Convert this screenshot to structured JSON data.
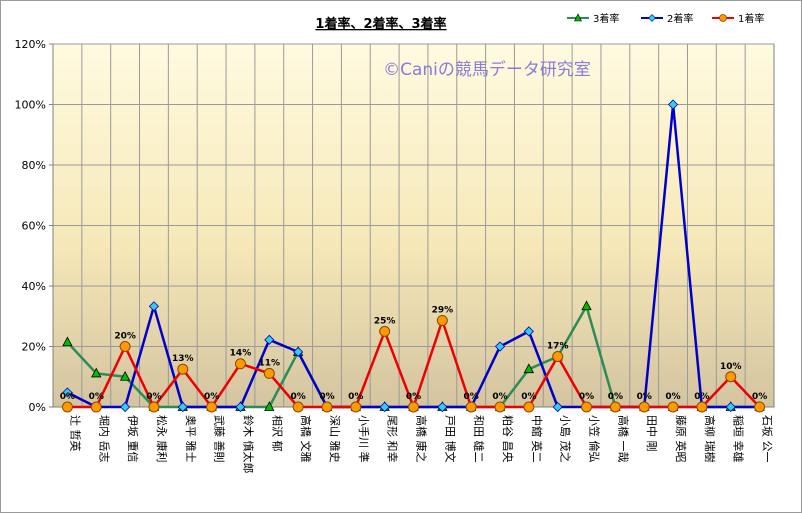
{
  "chart_data": {
    "type": "line",
    "title": "1着率、2着率、3着率",
    "watermark": "©Caniの競馬データ研究室",
    "ylim": [
      0,
      1.2
    ],
    "yticks": [
      "0%",
      "20%",
      "40%",
      "60%",
      "80%",
      "100%",
      "120%"
    ],
    "grid": true,
    "legend_position": "top-right",
    "categories": [
      "辻 哲英",
      "堀内 岳志",
      "伊坂 重信",
      "松永 康利",
      "奥平 雅士",
      "武藤 善則",
      "鈴木 慎太郎",
      "相沢 郁",
      "高橋 文雅",
      "深山 雅史",
      "小手川 準",
      "尾形 和幸",
      "高橋 康之",
      "戸田 博文",
      "和田 雄二",
      "粕谷 昌央",
      "中舘 英二",
      "小島 茂之",
      "小笠 倫弘",
      "高橋 一哉",
      "田中 剛",
      "藤原 英昭",
      "高柳 瑞樹",
      "稲垣 幸雄",
      "石坂 公一"
    ],
    "series": [
      {
        "name": "3着率",
        "color": "#2e8b57",
        "marker": "triangle",
        "marker_color": "#00bb00",
        "values": [
          0.214,
          0.111,
          0.1,
          0,
          0,
          0,
          0,
          0,
          0.182,
          0,
          0,
          0,
          0,
          0,
          0,
          0,
          0.125,
          0.167,
          0.333,
          0,
          0,
          0,
          0,
          0,
          0
        ]
      },
      {
        "name": "2着率",
        "color": "#0000cc",
        "marker": "diamond",
        "marker_color": "#33ccee",
        "values": [
          0.048,
          0,
          0,
          0.333,
          0,
          0,
          0,
          0.222,
          0.182,
          0,
          0,
          0,
          0,
          0,
          0,
          0.2,
          0.25,
          0,
          0,
          0,
          0,
          1.0,
          0,
          0,
          0
        ]
      },
      {
        "name": "1着率",
        "color": "#ee0000",
        "marker": "circle",
        "marker_color": "#ff9900",
        "values": [
          0,
          0,
          0.2,
          0,
          0.125,
          0,
          0.143,
          0.111,
          0,
          0,
          0,
          0.25,
          0,
          0.286,
          0,
          0,
          0,
          0.167,
          0,
          0,
          0,
          0,
          0,
          0.1,
          0
        ]
      }
    ],
    "data_labels": [
      "0%",
      "0%",
      "20%",
      "0%",
      "13%",
      "0%",
      "14%",
      "11%",
      "0%",
      "0%",
      "0%",
      "25%",
      "0%",
      "29%",
      "0%",
      "0%",
      "0%",
      "17%",
      "0%",
      "0%",
      "0%",
      "0%",
      "0%",
      "10%",
      "0%"
    ]
  }
}
